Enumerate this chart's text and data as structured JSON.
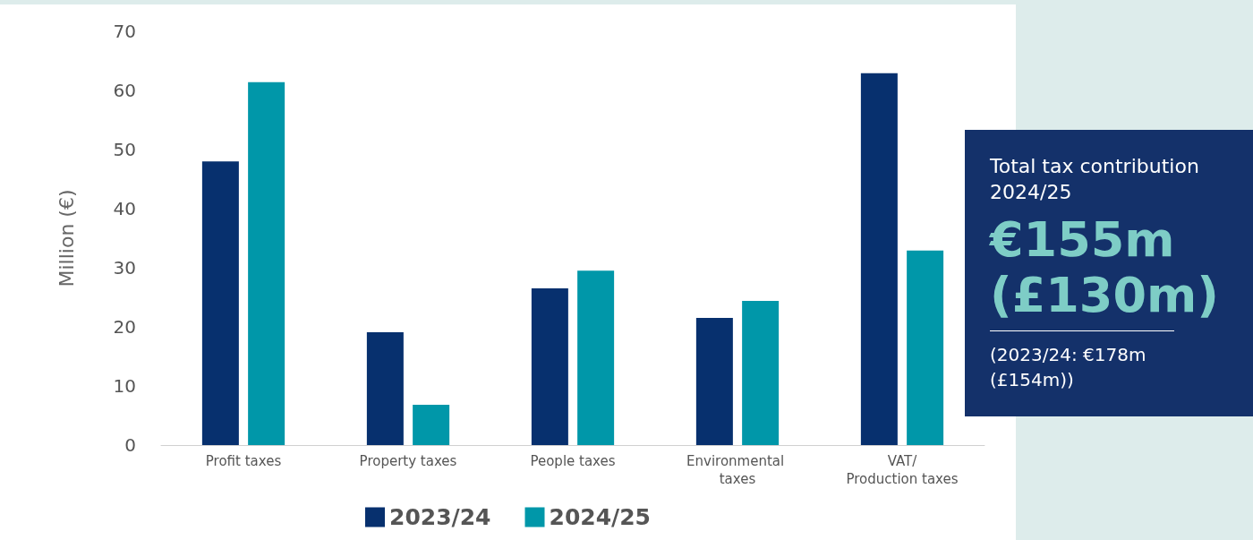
{
  "chart_data": {
    "type": "bar",
    "ylabel": "Million (€)",
    "categories": [
      "Profit taxes",
      "Property taxes",
      "People taxes",
      "Environmental taxes",
      "VAT/ Production taxes"
    ],
    "series": [
      {
        "name": "2023/24",
        "color": "#07306e",
        "values": [
          48,
          19.1,
          26.5,
          21.5,
          62.9
        ]
      },
      {
        "name": "2024/25",
        "color": "#0097a9",
        "values": [
          61.4,
          6.8,
          29.5,
          24.4,
          32.9
        ]
      }
    ],
    "ylim": [
      0,
      70
    ],
    "yticks": [
      0,
      10,
      20,
      30,
      40,
      50,
      60,
      70
    ],
    "grid": false,
    "legend": "bottom",
    "annotations": [
      "Total tax contribution 2024/25",
      "€155m (£130m)",
      "(2023/24: €178m (£154m))"
    ]
  }
}
